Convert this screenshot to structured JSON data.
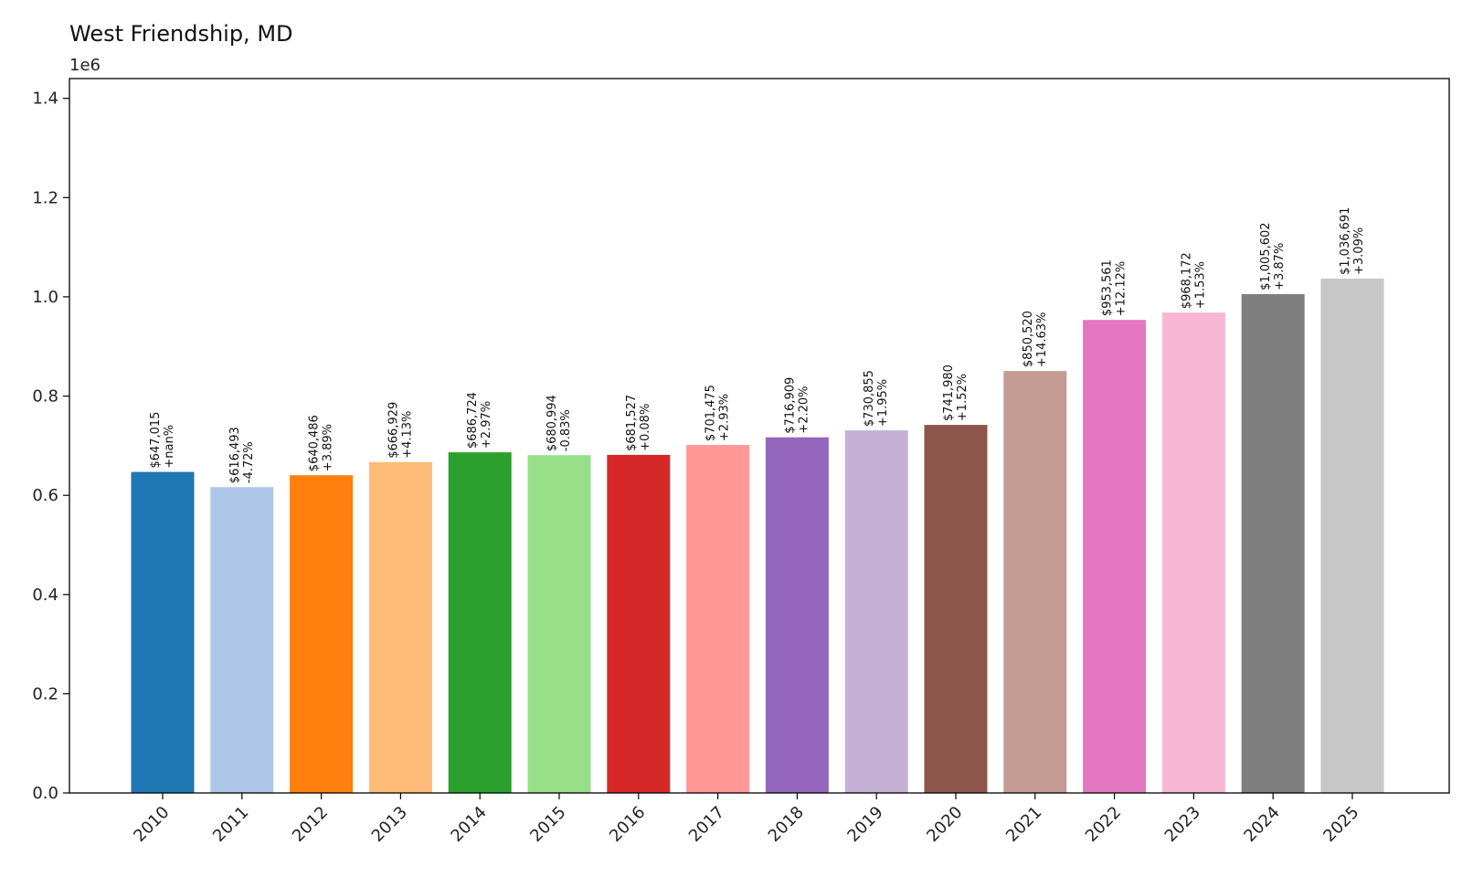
{
  "chart_data": {
    "type": "bar",
    "title": "West Friendship, MD",
    "offset_label": "1e6",
    "categories": [
      "2010",
      "2011",
      "2012",
      "2013",
      "2014",
      "2015",
      "2016",
      "2017",
      "2018",
      "2019",
      "2020",
      "2021",
      "2022",
      "2023",
      "2024",
      "2025"
    ],
    "values": [
      647015,
      616493,
      640486,
      666929,
      686724,
      680994,
      681527,
      701475,
      716909,
      730855,
      741980,
      850520,
      953561,
      968172,
      1005602,
      1036691
    ],
    "value_labels": [
      "$647,015",
      "$616,493",
      "$640,486",
      "$666,929",
      "$686,724",
      "$680,994",
      "$681,527",
      "$701,475",
      "$716,909",
      "$730,855",
      "$741,980",
      "$850,520",
      "$953,561",
      "$968,172",
      "$1,005,602",
      "$1,036,691"
    ],
    "change_labels": [
      "+nan%",
      "-4.72%",
      "+3.89%",
      "+4.13%",
      "+2.97%",
      "-0.83%",
      "+0.08%",
      "+2.93%",
      "+2.20%",
      "+1.95%",
      "+1.52%",
      "+14.63%",
      "+12.12%",
      "+1.53%",
      "+3.87%",
      "+3.09%"
    ],
    "colors": [
      "#1f77b4",
      "#aec7e8",
      "#ff7f0e",
      "#ffbb78",
      "#2ca02c",
      "#98df8a",
      "#d62728",
      "#ff9896",
      "#9467bd",
      "#c5b0d5",
      "#8c564b",
      "#c49c94",
      "#e377c2",
      "#f7b6d2",
      "#7f7f7f",
      "#c7c7c7"
    ],
    "yticks": [
      "0.0",
      "0.2",
      "0.4",
      "0.6",
      "0.8",
      "1.0",
      "1.2",
      "1.4"
    ],
    "ylim": [
      0,
      1440000
    ],
    "xlabel": "",
    "ylabel": "",
    "grid": false,
    "legend": "none"
  }
}
